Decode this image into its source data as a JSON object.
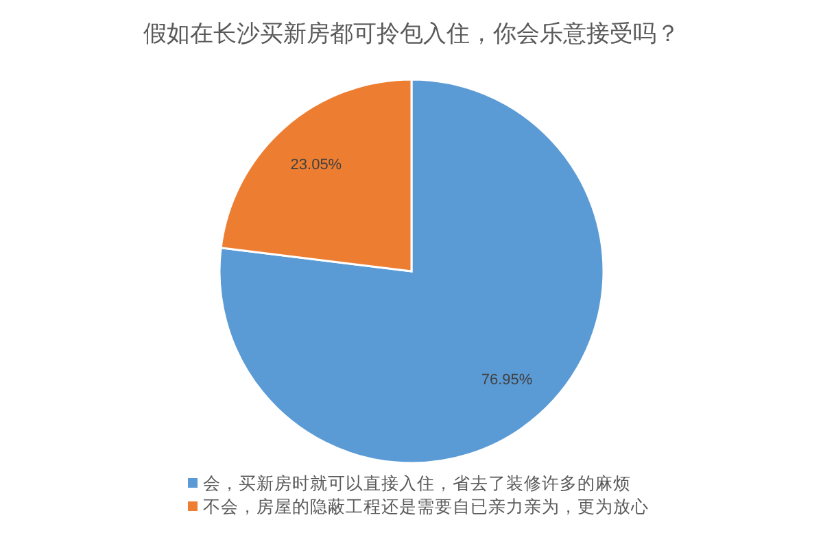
{
  "chart_data": {
    "type": "pie",
    "title": "假如在长沙买新房都可拎包入住，你会乐意接受吗？",
    "categories": [
      "会，买新房时就可以直接入住，省去了装修许多的麻烦",
      "不会，房屋的隐蔽工程还是需要自已亲力亲为，更为放心"
    ],
    "values": [
      76.95,
      23.05
    ],
    "colors": [
      "#5b9bd5",
      "#ed7d31"
    ],
    "value_labels": [
      "76.95%",
      "23.05%"
    ],
    "legend": "bottom"
  }
}
